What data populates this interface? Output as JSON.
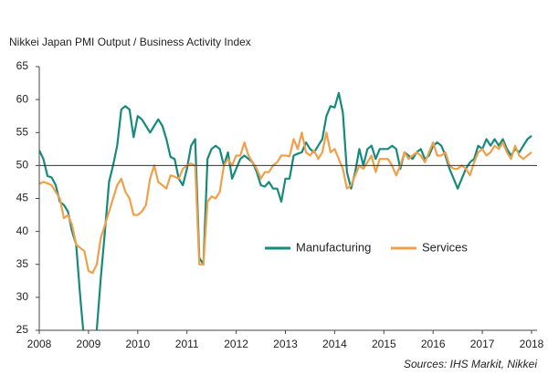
{
  "chart_data": {
    "type": "line",
    "title": "Nikkei Japan PMI Output  / Business Activity Index",
    "source": "Sources: IHS Markit, Nikkei",
    "xlim": [
      2008,
      2018
    ],
    "xticks": [
      2008,
      2009,
      2010,
      2011,
      2012,
      2013,
      2014,
      2015,
      2016,
      2017,
      2018
    ],
    "ylim": [
      25,
      65
    ],
    "yticks": [
      25,
      30,
      35,
      40,
      45,
      50,
      55,
      60,
      65
    ],
    "x_axis_at": 50,
    "legend": "center",
    "series": [
      {
        "name": "Manufacturing",
        "color": "#168a7c",
        "values": [
          52.3,
          51,
          48.4,
          48.2,
          47,
          44.5,
          44,
          43,
          40,
          38,
          30,
          23,
          21,
          22,
          25,
          33,
          40,
          47.5,
          50,
          53,
          58.5,
          59,
          58.5,
          54.3,
          57.5,
          57,
          56,
          55,
          56,
          57,
          56,
          54,
          51.3,
          51,
          48,
          47,
          49.5,
          53,
          54,
          36,
          35,
          51,
          52.5,
          53,
          52.5,
          50,
          52,
          48,
          49.5,
          51,
          51.5,
          51,
          50.5,
          49,
          47,
          46.8,
          47.5,
          46.5,
          46.5,
          44.5,
          48,
          48,
          51.5,
          51.8,
          52,
          53.5,
          52.5,
          52,
          53,
          54,
          57.5,
          59,
          58.8,
          61,
          58,
          49,
          46.5,
          49,
          52.5,
          50,
          52.5,
          53,
          51,
          52.5,
          52.5,
          52.5,
          53,
          52.5,
          49.5,
          52,
          51.5,
          51,
          52,
          52.5,
          51,
          51.5,
          53,
          53.5,
          53,
          51.5,
          49.5,
          48,
          46.5,
          48,
          49.5,
          50.5,
          51,
          53,
          52.5,
          54,
          53,
          54,
          53,
          54,
          52.5,
          51.5,
          52.5,
          52,
          53,
          54,
          54.5
        ]
      },
      {
        "name": "Services",
        "color": "#f0a04b",
        "values": [
          47.2,
          47.5,
          47.3,
          47,
          46,
          45,
          42,
          42.5,
          41,
          38,
          37.5,
          37,
          34,
          33.7,
          35,
          39,
          41,
          43,
          45,
          47,
          48,
          46,
          45,
          42.5,
          42.5,
          43,
          44,
          48,
          50,
          47.5,
          47,
          46.5,
          48.5,
          48.3,
          48,
          49.5,
          50,
          50.3,
          50,
          35,
          35,
          44.5,
          45.3,
          45,
          46,
          50,
          51,
          50,
          51.5,
          51.5,
          53.5,
          51.5,
          50.5,
          49.5,
          48,
          49,
          49,
          50,
          50.5,
          51.5,
          51.5,
          51.4,
          54,
          52.5,
          55,
          52,
          51.5,
          52.3,
          51,
          52,
          55,
          52,
          52.5,
          51,
          49.5,
          46.5,
          47,
          48.5,
          50,
          49.5,
          50.5,
          51.5,
          49,
          51,
          51,
          51,
          50,
          48.5,
          50,
          52,
          51,
          51.5,
          52,
          51.5,
          50.5,
          52,
          53.5,
          51.5,
          51.5,
          52,
          50,
          49.5,
          49.5,
          50,
          49.5,
          48.5,
          50.5,
          52,
          52.5,
          51.5,
          52,
          53,
          52.5,
          53.5,
          52,
          51,
          53,
          51.5,
          51,
          51.5,
          52
        ]
      }
    ]
  }
}
